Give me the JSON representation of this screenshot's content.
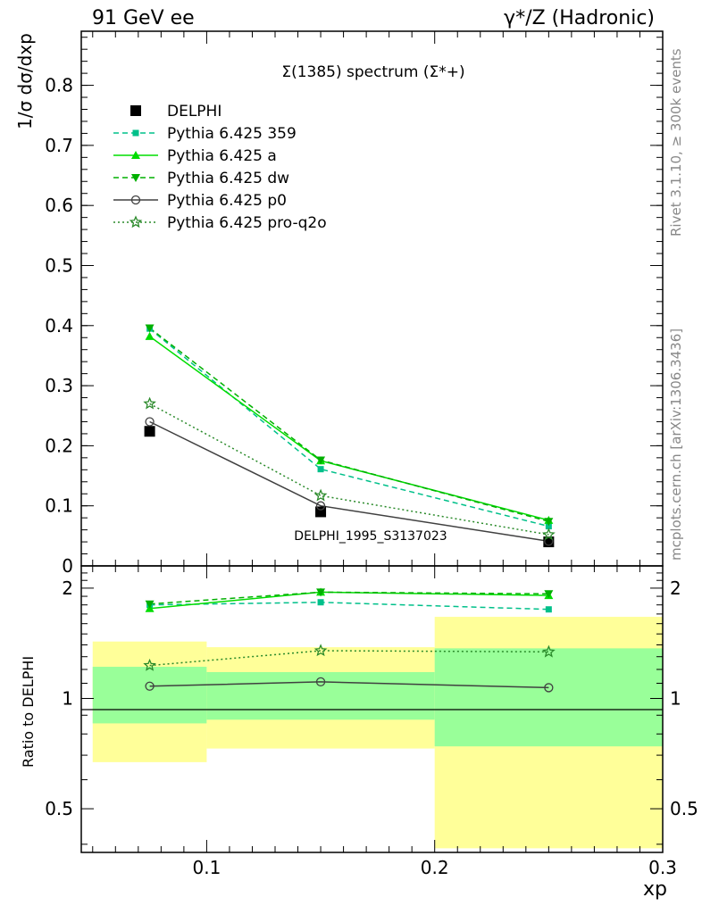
{
  "header": {
    "left": "91 GeV ee",
    "right": "γ*/Z (Hadronic)"
  },
  "side_labels": {
    "top": "Rivet 3.1.10, ≥ 300k events",
    "bottom": "mcplots.cern.ch [arXiv:1306.3436]"
  },
  "chart_data": [
    {
      "type": "line",
      "title": "Σ(1385) spectrum (Σ*+)",
      "watermark": "DELPHI_1995_S3137023",
      "ylabel": "1/σ dσ/dxp",
      "xlabel": "xp",
      "xlim": [
        0.045,
        0.3
      ],
      "ylim": [
        0,
        0.89
      ],
      "y_ticks": [
        0,
        0.1,
        0.2,
        0.3,
        0.4,
        0.5,
        0.6,
        0.7,
        0.8
      ],
      "y_tick_labels": [
        "0",
        "0.1",
        "0.2",
        "0.3",
        "0.4",
        "0.5",
        "0.6",
        "0.7",
        "0.8"
      ],
      "x": [
        0.075,
        0.15,
        0.25
      ],
      "series": [
        {
          "name": "DELPHI",
          "values": [
            0.224,
            0.09,
            0.04
          ],
          "color": "#000000",
          "marker": "square",
          "line": "none"
        },
        {
          "name": "Pythia 6.425 359",
          "values": [
            0.395,
            0.161,
            0.066
          ],
          "color": "#00c08a",
          "marker": "small-square",
          "line": "dashed"
        },
        {
          "name": "Pythia 6.425 a",
          "values": [
            0.382,
            0.175,
            0.076
          ],
          "color": "#00dd00",
          "marker": "triangle-up",
          "line": "solid"
        },
        {
          "name": "Pythia 6.425 dw",
          "values": [
            0.396,
            0.176,
            0.074
          ],
          "color": "#00b000",
          "marker": "triangle-down",
          "line": "dashed"
        },
        {
          "name": "Pythia 6.425 p0",
          "values": [
            0.24,
            0.1,
            0.041
          ],
          "color": "#404040",
          "marker": "open-circle",
          "line": "solid"
        },
        {
          "name": "Pythia 6.425 pro-q2o",
          "values": [
            0.27,
            0.117,
            0.052
          ],
          "color": "#2a8a2a",
          "marker": "open-star",
          "line": "dotted"
        }
      ]
    },
    {
      "type": "line",
      "ylabel": "Ratio to DELPHI",
      "xlabel": "xp",
      "xlim": [
        0.045,
        0.3
      ],
      "ylim": [
        0.38,
        2.3
      ],
      "y_ticks": [
        0.5,
        1,
        2
      ],
      "y_tick_labels": [
        "0.5",
        "1",
        "2"
      ],
      "x_ticks": [
        0.1,
        0.2,
        0.3
      ],
      "x_tick_labels": [
        "0.1",
        "0.2",
        "0.3"
      ],
      "bands": [
        {
          "x_range": [
            0.05,
            0.1
          ],
          "inner": [
            0.855,
            1.22
          ],
          "outer": [
            0.67,
            1.43
          ]
        },
        {
          "x_range": [
            0.1,
            0.2
          ],
          "inner": [
            0.875,
            1.18
          ],
          "outer": [
            0.73,
            1.38
          ]
        },
        {
          "x_range": [
            0.2,
            0.3
          ],
          "inner": [
            0.74,
            1.37
          ],
          "outer": [
            0.39,
            1.67
          ]
        }
      ],
      "x": [
        0.075,
        0.15,
        0.25
      ],
      "series": [
        {
          "name": "Pythia 6.425 359",
          "values": [
            1.8,
            1.83,
            1.75
          ],
          "color": "#00c08a",
          "marker": "small-square",
          "line": "dashed"
        },
        {
          "name": "Pythia 6.425 a",
          "values": [
            1.76,
            1.95,
            1.91
          ],
          "color": "#00dd00",
          "marker": "triangle-up",
          "line": "solid"
        },
        {
          "name": "Pythia 6.425 dw",
          "values": [
            1.81,
            1.95,
            1.93
          ],
          "color": "#00b000",
          "marker": "triangle-down",
          "line": "dashed"
        },
        {
          "name": "Pythia 6.425 p0",
          "values": [
            1.08,
            1.11,
            1.07
          ],
          "color": "#404040",
          "marker": "open-circle",
          "line": "solid"
        },
        {
          "name": "Pythia 6.425 pro-q2o",
          "values": [
            1.23,
            1.35,
            1.34
          ],
          "color": "#2a8a2a",
          "marker": "open-star",
          "line": "dotted"
        }
      ]
    }
  ]
}
